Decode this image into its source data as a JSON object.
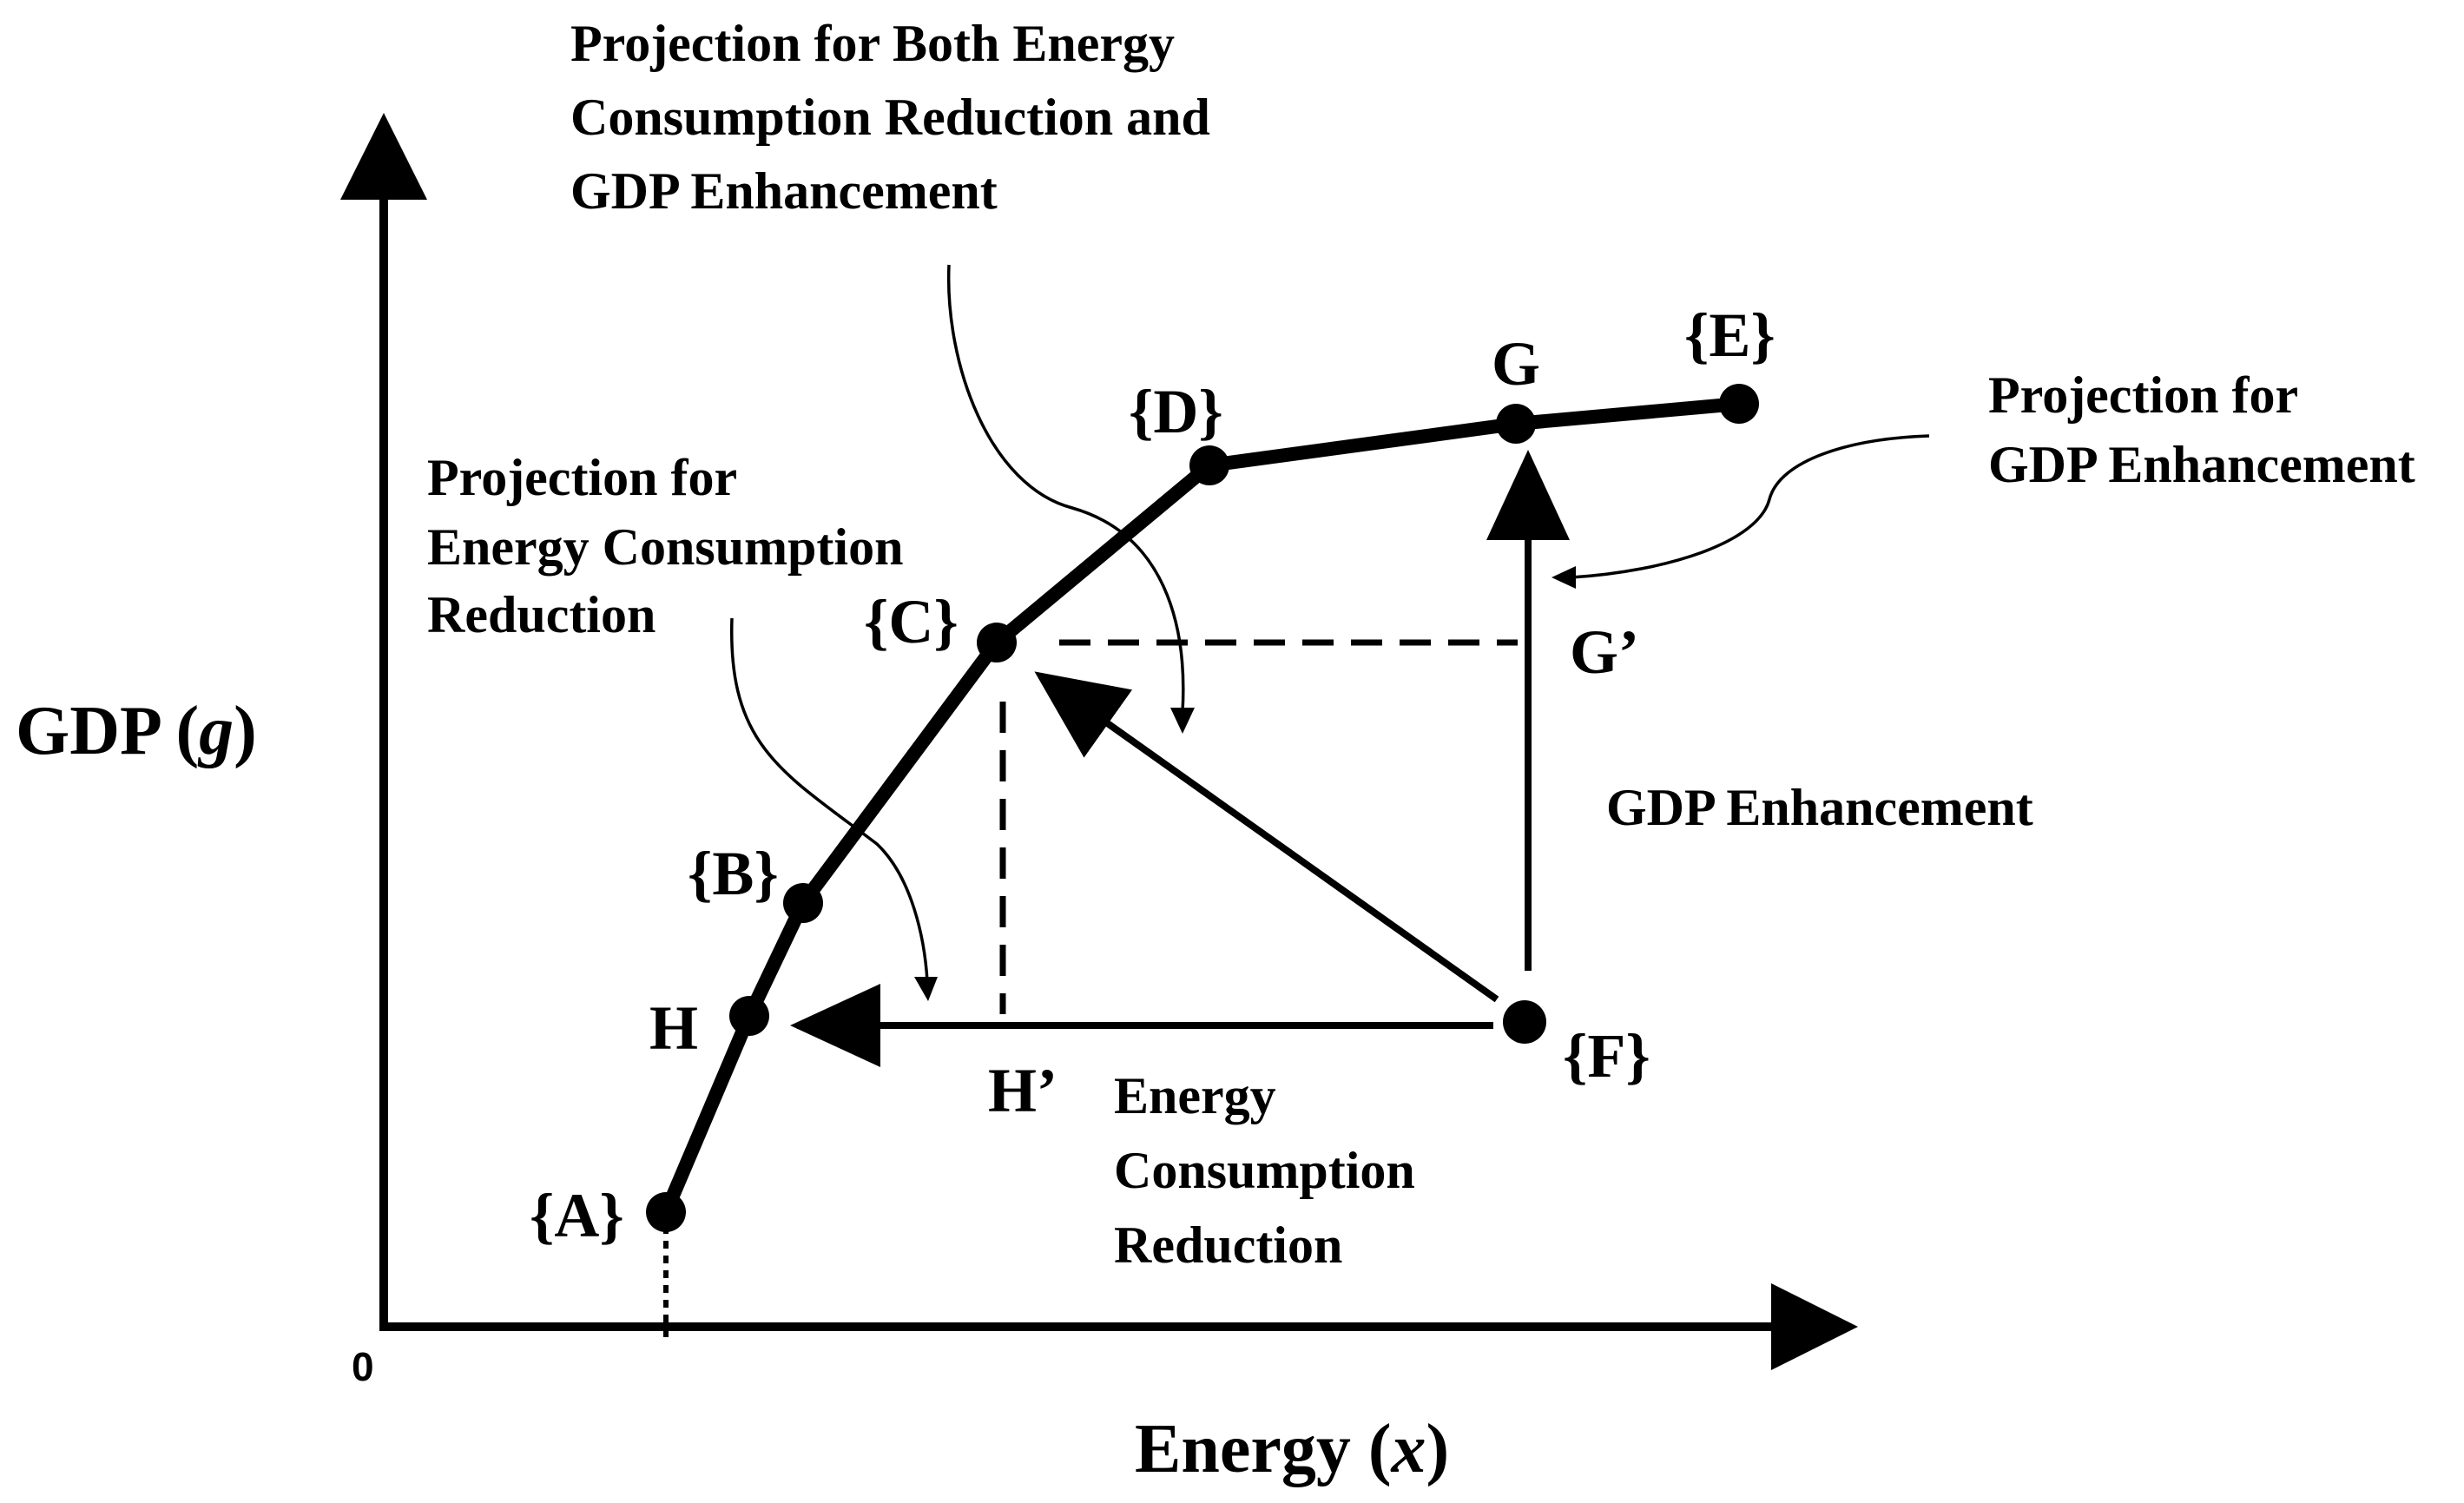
{
  "axes": {
    "y_label_prefix": "GDP (",
    "y_label_var": "g",
    "y_label_suffix": ")",
    "x_label_prefix": "Energy (",
    "x_label_var": "x",
    "x_label_suffix": ")",
    "origin": "0"
  },
  "points": {
    "A": "{A}",
    "B": "{B}",
    "C": "{C}",
    "D": "{D}",
    "E": "{E}",
    "F": "{F}",
    "G": "G",
    "H": "H",
    "G_prime": "G’",
    "H_prime": "H’"
  },
  "annotations": {
    "both_projection": [
      "Projection for Both Energy",
      "Consumption Reduction and",
      "GDP Enhancement"
    ],
    "energy_projection": [
      "Projection for",
      "Energy Consumption",
      "Reduction"
    ],
    "gdp_projection": [
      "Projection for",
      "GDP Enhancement"
    ],
    "gdp_enhancement": "GDP Enhancement",
    "energy_reduction": [
      "Energy",
      "Consumption",
      "Reduction"
    ]
  },
  "colors": {
    "ink": "#000000",
    "background": "#ffffff"
  }
}
